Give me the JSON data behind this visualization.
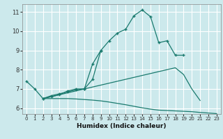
{
  "xlabel": "Humidex (Indice chaleur)",
  "bg_color": "#cce9ec",
  "grid_color": "#ffffff",
  "line_color": "#1a7a6e",
  "xlim": [
    -0.5,
    23.5
  ],
  "ylim": [
    5.7,
    11.4
  ],
  "xticks": [
    0,
    1,
    2,
    3,
    4,
    5,
    6,
    7,
    8,
    9,
    10,
    11,
    12,
    13,
    14,
    15,
    16,
    17,
    18,
    19,
    20,
    21,
    22,
    23
  ],
  "yticks": [
    6,
    7,
    8,
    9,
    10,
    11
  ],
  "series": [
    {
      "x": [
        0,
        1,
        2,
        3,
        4,
        5,
        6,
        7,
        8,
        9,
        10,
        11,
        12,
        13,
        14,
        15,
        16,
        17,
        18,
        19
      ],
      "y": [
        7.4,
        7.0,
        6.5,
        6.6,
        6.7,
        6.9,
        7.0,
        7.0,
        7.5,
        9.0,
        9.5,
        9.9,
        10.1,
        10.8,
        11.1,
        10.75,
        9.4,
        9.5,
        8.75,
        8.75
      ],
      "markers": true
    },
    {
      "x": [
        2,
        3,
        4,
        5,
        6,
        7,
        8,
        9
      ],
      "y": [
        6.5,
        6.65,
        6.75,
        6.85,
        6.95,
        7.0,
        8.3,
        9.0
      ],
      "markers": true
    },
    {
      "x": [
        2,
        3,
        4,
        5,
        6,
        7,
        8,
        9,
        10,
        11,
        12,
        13,
        14,
        15,
        16,
        17,
        18,
        19,
        20,
        21
      ],
      "y": [
        6.5,
        6.6,
        6.7,
        6.8,
        6.9,
        7.0,
        7.1,
        7.2,
        7.3,
        7.4,
        7.5,
        7.6,
        7.7,
        7.8,
        7.9,
        8.0,
        8.1,
        7.75,
        7.0,
        6.4
      ],
      "markers": false
    },
    {
      "x": [
        2,
        3,
        4,
        5,
        6,
        7,
        8,
        9,
        10,
        11,
        12,
        13,
        14,
        15,
        16,
        17,
        18,
        19,
        20,
        21,
        22,
        23
      ],
      "y": [
        6.5,
        6.5,
        6.5,
        6.5,
        6.48,
        6.45,
        6.42,
        6.38,
        6.32,
        6.25,
        6.18,
        6.1,
        6.02,
        5.95,
        5.9,
        5.88,
        5.86,
        5.84,
        5.82,
        5.78,
        5.75,
        5.72
      ],
      "markers": false
    }
  ]
}
